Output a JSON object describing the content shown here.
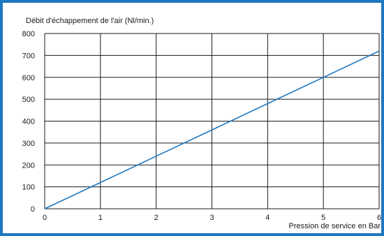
{
  "chart_data": {
    "type": "line",
    "title": "",
    "ylabel": "Débit d'échappement de l'air (Nl/min.)",
    "xlabel": "Pression de service en Bar",
    "xlim": [
      0,
      6
    ],
    "ylim": [
      0,
      800
    ],
    "x_ticks": [
      0,
      1,
      2,
      3,
      4,
      5,
      6
    ],
    "y_ticks": [
      0,
      100,
      200,
      300,
      400,
      500,
      600,
      700,
      800
    ],
    "grid": true,
    "series": [
      {
        "x": [
          0,
          1,
          2,
          3,
          4,
          5,
          6
        ],
        "y": [
          0,
          120,
          240,
          360,
          480,
          600,
          720
        ],
        "color": "#1f78c1"
      }
    ]
  },
  "colors": {
    "frame": "#1f78c1",
    "line": "#1f78c1",
    "grid": "#1a1a1a"
  }
}
